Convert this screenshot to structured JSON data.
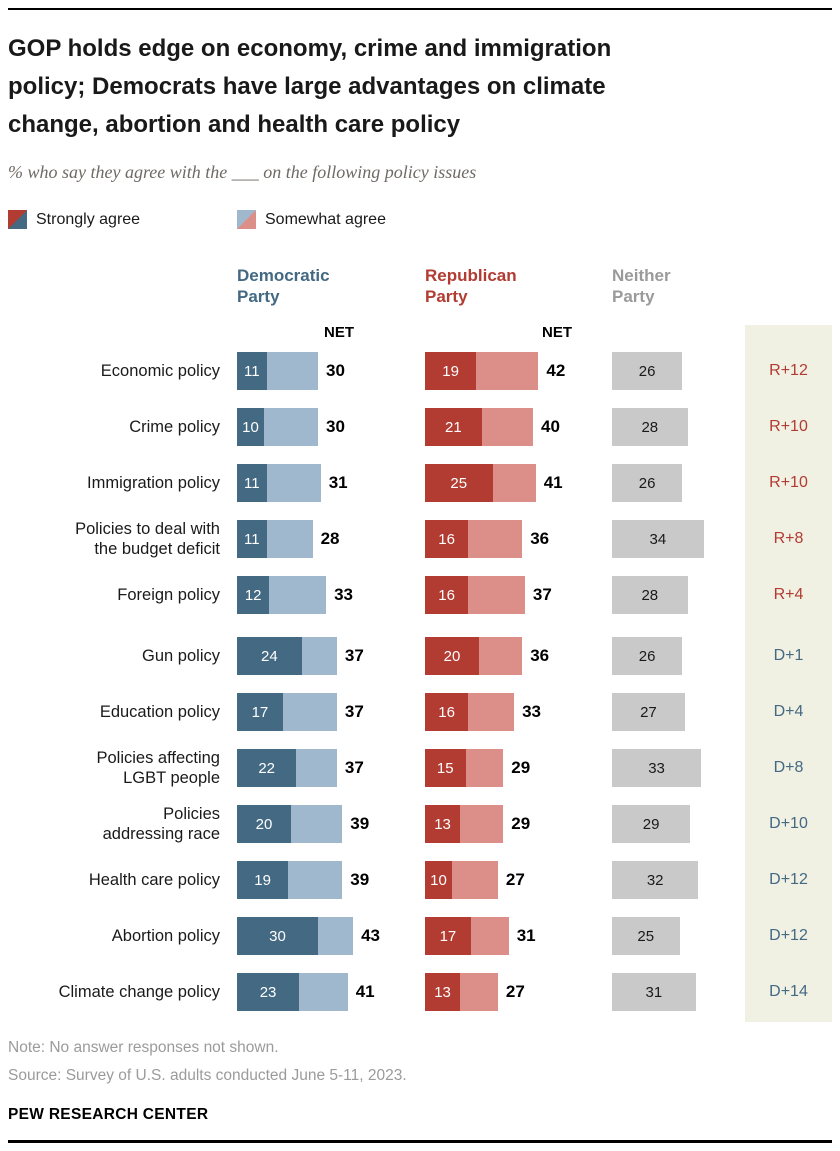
{
  "header": {
    "title": "GOP holds edge on economy, crime and immigration\npolicy; Democrats have large advantages on climate\nchange, abortion and health care policy",
    "subtitle": "% who say they agree with the ___ on the following policy issues"
  },
  "legend": [
    {
      "label": "Strongly agree",
      "icon": "strongly-agree-swatch-icon"
    },
    {
      "label": "Somewhat agree",
      "icon": "somewhat-agree-swatch-icon"
    }
  ],
  "columns": {
    "democratic": "Democratic\nParty",
    "republican": "Republican\nParty",
    "neither": "Neither\nParty",
    "net_label": "NET"
  },
  "colors": {
    "dem_dark": "#436983",
    "dem_light": "#9FB8CE",
    "rep_dark": "#B23B32",
    "rep_light": "#DC8F88",
    "neither_bar": "#C9C9C9",
    "neither_header": "#9A9A9A",
    "margin_bg": "#F0F0E3",
    "r_advantage": "#B23B32",
    "d_advantage": "#436983"
  },
  "rows": [
    {
      "label": "Economic policy",
      "dem_strong": 11,
      "dem_net": 30,
      "rep_strong": 19,
      "rep_net": 42,
      "neither": 26,
      "margin": "R+12"
    },
    {
      "label": "Crime policy",
      "dem_strong": 10,
      "dem_net": 30,
      "rep_strong": 21,
      "rep_net": 40,
      "neither": 28,
      "margin": "R+10"
    },
    {
      "label": "Immigration policy",
      "dem_strong": 11,
      "dem_net": 31,
      "rep_strong": 25,
      "rep_net": 41,
      "neither": 26,
      "margin": "R+10"
    },
    {
      "label": "Policies to deal with\nthe budget deficit",
      "dem_strong": 11,
      "dem_net": 28,
      "rep_strong": 16,
      "rep_net": 36,
      "neither": 34,
      "margin": "R+8"
    },
    {
      "label": "Foreign policy",
      "dem_strong": 12,
      "dem_net": 33,
      "rep_strong": 16,
      "rep_net": 37,
      "neither": 28,
      "margin": "R+4"
    },
    {
      "label": "Gun policy",
      "dem_strong": 24,
      "dem_net": 37,
      "rep_strong": 20,
      "rep_net": 36,
      "neither": 26,
      "margin": "D+1"
    },
    {
      "label": "Education policy",
      "dem_strong": 17,
      "dem_net": 37,
      "rep_strong": 16,
      "rep_net": 33,
      "neither": 27,
      "margin": "D+4"
    },
    {
      "label": "Policies affecting\nLGBT people",
      "dem_strong": 22,
      "dem_net": 37,
      "rep_strong": 15,
      "rep_net": 29,
      "neither": 33,
      "margin": "D+8"
    },
    {
      "label": "Policies\naddressing race",
      "dem_strong": 20,
      "dem_net": 39,
      "rep_strong": 13,
      "rep_net": 29,
      "neither": 29,
      "margin": "D+10"
    },
    {
      "label": "Health care policy",
      "dem_strong": 19,
      "dem_net": 39,
      "rep_strong": 10,
      "rep_net": 27,
      "neither": 32,
      "margin": "D+12"
    },
    {
      "label": "Abortion policy",
      "dem_strong": 30,
      "dem_net": 43,
      "rep_strong": 17,
      "rep_net": 31,
      "neither": 25,
      "margin": "D+12"
    },
    {
      "label": "Climate change policy",
      "dem_strong": 23,
      "dem_net": 41,
      "rep_strong": 13,
      "rep_net": 27,
      "neither": 31,
      "margin": "D+14"
    }
  ],
  "footer": {
    "note": "Note: No answer responses not shown.",
    "source": "Source: Survey of U.S. adults conducted June 5-11, 2023.",
    "brand": "PEW RESEARCH CENTER"
  },
  "chart_data": {
    "type": "bar",
    "orientation": "horizontal",
    "title": "GOP holds edge on economy, crime and immigration policy; Democrats have large advantages on climate change, abortion and health care policy",
    "subtitle": "% who say they agree with the ___ on the following policy issues",
    "unit": "%",
    "categories": [
      "Economic policy",
      "Crime policy",
      "Immigration policy",
      "Policies to deal with the budget deficit",
      "Foreign policy",
      "Gun policy",
      "Education policy",
      "Policies affecting LGBT people",
      "Policies addressing race",
      "Health care policy",
      "Abortion policy",
      "Climate change policy"
    ],
    "series": [
      {
        "name": "Democratic Party - Strongly agree",
        "values": [
          11,
          10,
          11,
          11,
          12,
          24,
          17,
          22,
          20,
          19,
          30,
          23
        ]
      },
      {
        "name": "Democratic Party - NET agree",
        "values": [
          30,
          30,
          31,
          28,
          33,
          37,
          37,
          37,
          39,
          39,
          43,
          41
        ]
      },
      {
        "name": "Republican Party - Strongly agree",
        "values": [
          19,
          21,
          25,
          16,
          16,
          20,
          16,
          15,
          13,
          10,
          17,
          13
        ]
      },
      {
        "name": "Republican Party - NET agree",
        "values": [
          42,
          40,
          41,
          36,
          37,
          36,
          33,
          29,
          29,
          27,
          31,
          27
        ]
      },
      {
        "name": "Neither Party",
        "values": [
          26,
          28,
          26,
          34,
          28,
          26,
          27,
          33,
          29,
          32,
          25,
          31
        ]
      }
    ],
    "annotations": [
      "R+12",
      "R+10",
      "R+10",
      "R+8",
      "R+4",
      "D+1",
      "D+4",
      "D+8",
      "D+10",
      "D+12",
      "D+12",
      "D+14"
    ],
    "legend": [
      "Strongly agree",
      "Somewhat agree"
    ],
    "legend_position": "top",
    "axis": {
      "xlim": [
        0,
        50
      ],
      "gridlines": false
    }
  }
}
